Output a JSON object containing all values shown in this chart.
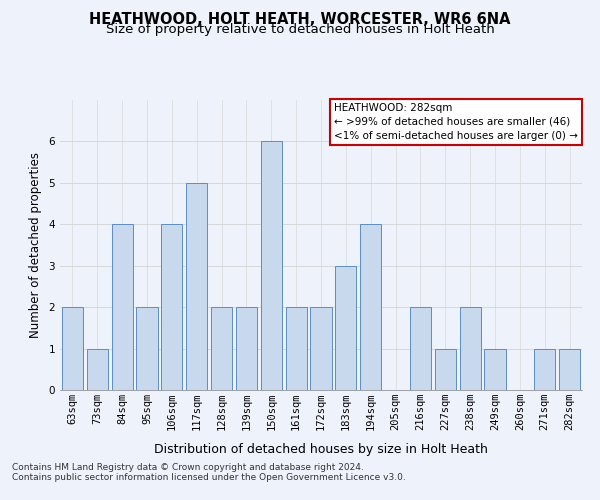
{
  "title": "HEATHWOOD, HOLT HEATH, WORCESTER, WR6 6NA",
  "subtitle": "Size of property relative to detached houses in Holt Heath",
  "xlabel": "Distribution of detached houses by size in Holt Heath",
  "ylabel": "Number of detached properties",
  "categories": [
    "63sqm",
    "73sqm",
    "84sqm",
    "95sqm",
    "106sqm",
    "117sqm",
    "128sqm",
    "139sqm",
    "150sqm",
    "161sqm",
    "172sqm",
    "183sqm",
    "194sqm",
    "205sqm",
    "216sqm",
    "227sqm",
    "238sqm",
    "249sqm",
    "260sqm",
    "271sqm",
    "282sqm"
  ],
  "values": [
    2,
    1,
    4,
    2,
    4,
    5,
    2,
    2,
    6,
    2,
    2,
    3,
    4,
    0,
    2,
    1,
    2,
    1,
    0,
    1,
    1
  ],
  "bar_color": "#c8d9ee",
  "bar_edge_color": "#5b8dc8",
  "legend_title": "HEATHWOOD: 282sqm",
  "legend_line1": "← >99% of detached houses are smaller (46)",
  "legend_line2": "<1% of semi-detached houses are larger (0) →",
  "legend_box_color": "#cc0000",
  "ylim": [
    0,
    7
  ],
  "yticks": [
    0,
    1,
    2,
    3,
    4,
    5,
    6
  ],
  "footer_line1": "Contains HM Land Registry data © Crown copyright and database right 2024.",
  "footer_line2": "Contains public sector information licensed under the Open Government Licence v3.0.",
  "background_color": "#eef2fa",
  "title_fontsize": 10.5,
  "subtitle_fontsize": 9.5,
  "axis_label_fontsize": 8.5,
  "tick_fontsize": 7.5,
  "footer_fontsize": 6.5,
  "legend_fontsize": 7.5
}
